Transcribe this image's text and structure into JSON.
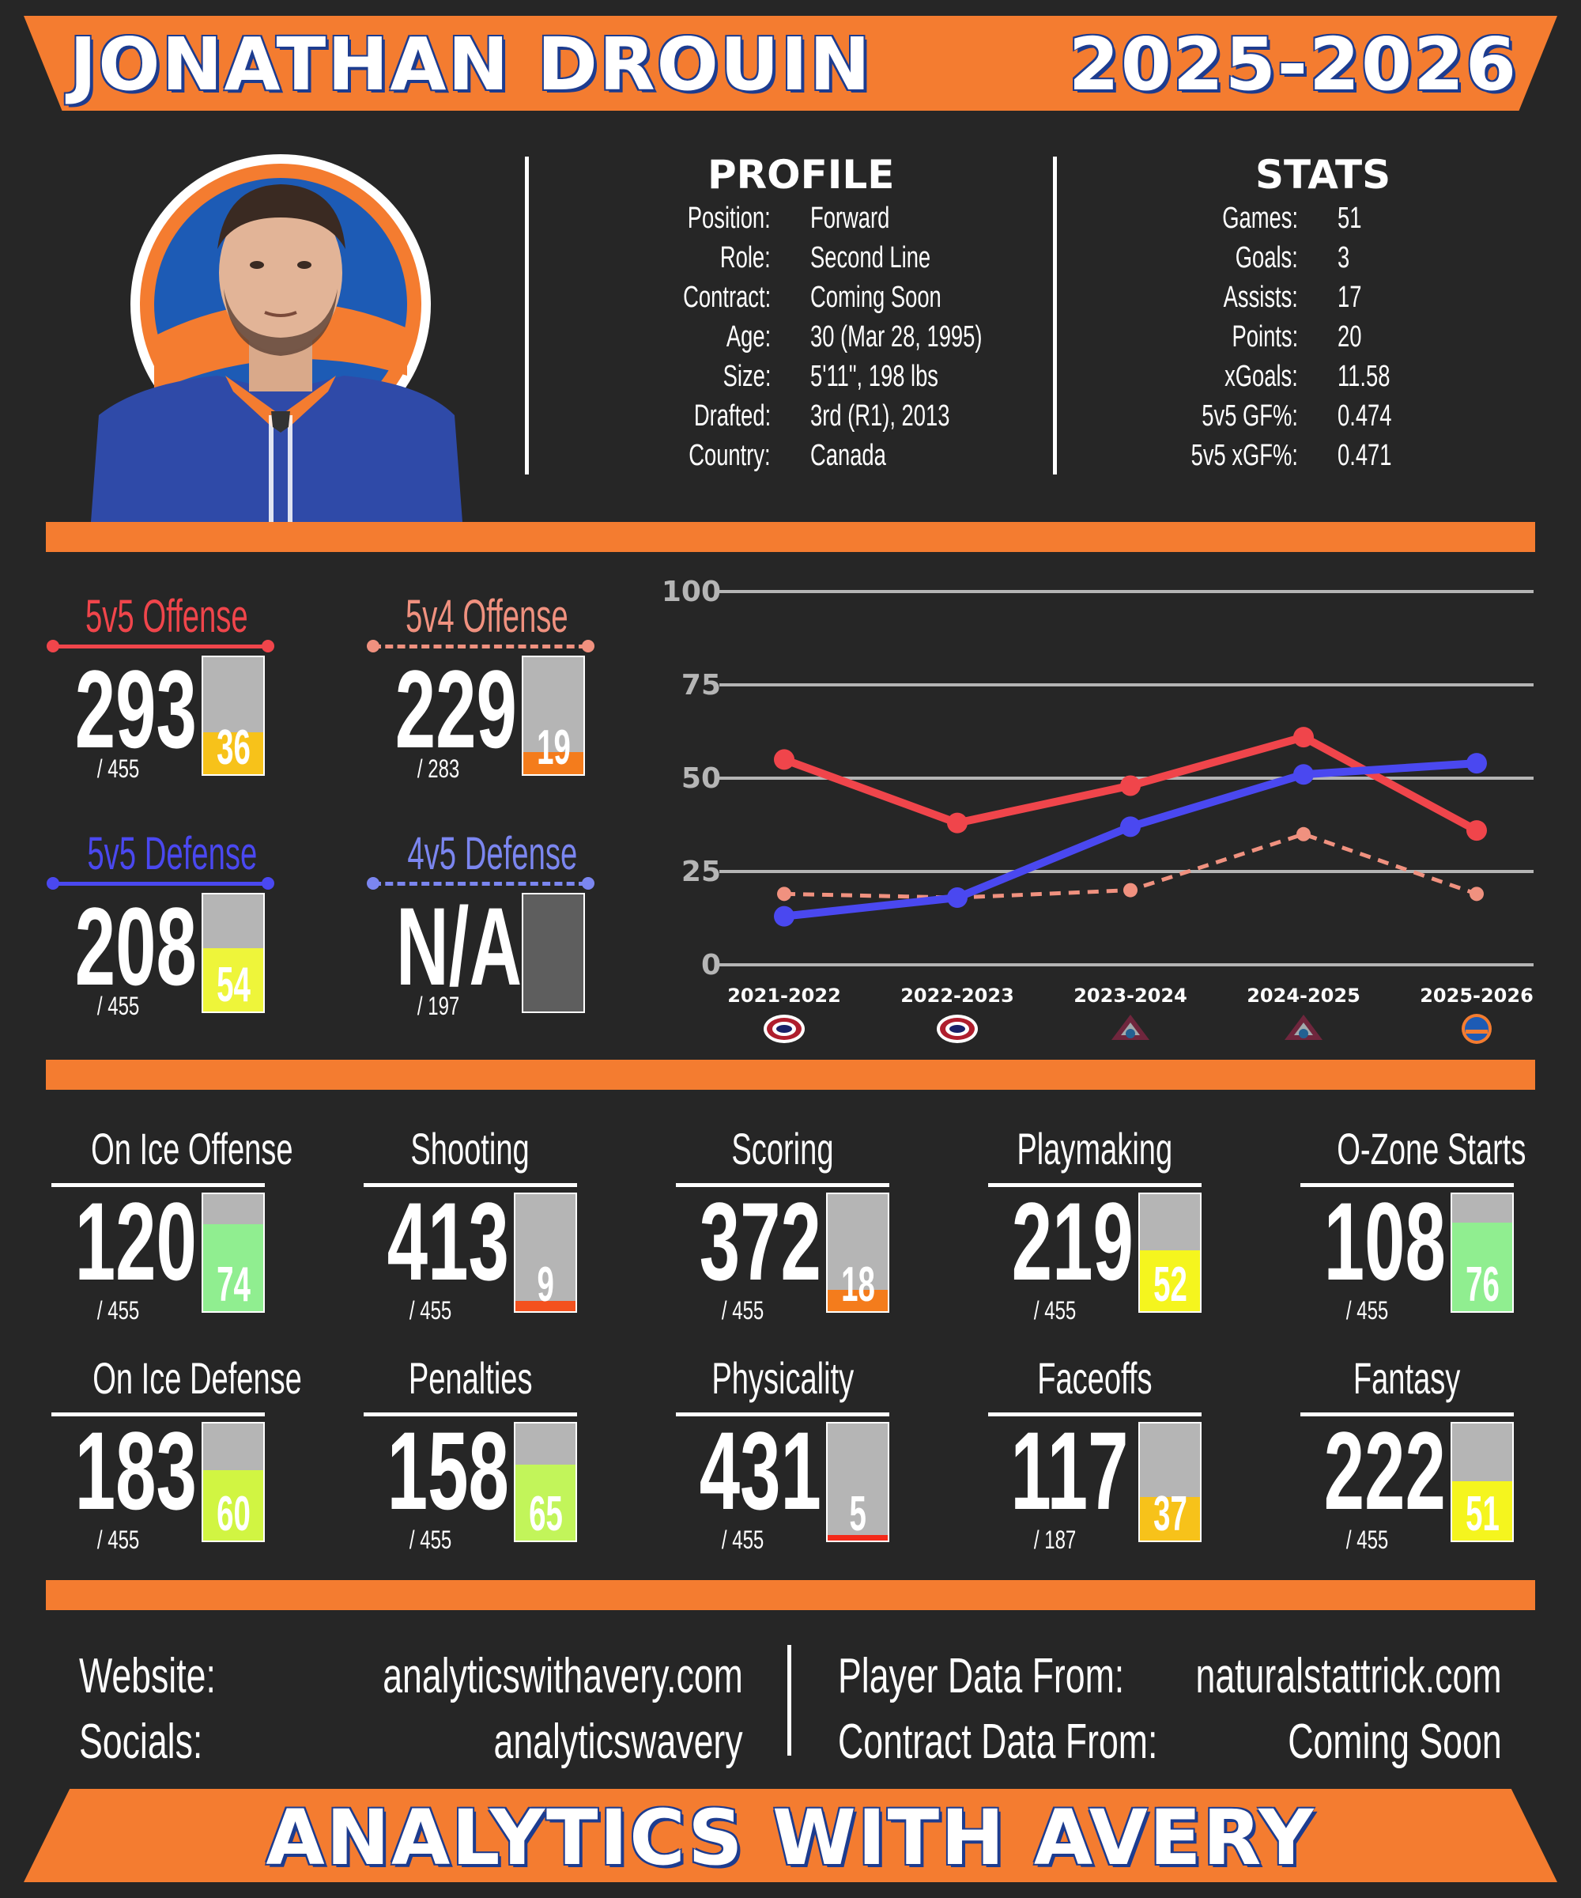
{
  "header": {
    "player_name": "JONATHAN DROUIN",
    "season": "2025-2026"
  },
  "profile": {
    "title": "PROFILE",
    "rows": [
      {
        "label": "Position:",
        "value": "Forward"
      },
      {
        "label": "Role:",
        "value": "Second Line"
      },
      {
        "label": "Contract:",
        "value": "Coming Soon"
      },
      {
        "label": "Age:",
        "value": "30 (Mar 28, 1995)"
      },
      {
        "label": "Size:",
        "value": "5'11\", 198 lbs"
      },
      {
        "label": "Drafted:",
        "value": "3rd (R1), 2013"
      },
      {
        "label": "Country:",
        "value": "Canada"
      }
    ]
  },
  "stats": {
    "title": "STATS",
    "rows": [
      {
        "label": "Games:",
        "value": "51"
      },
      {
        "label": "Goals:",
        "value": "3"
      },
      {
        "label": "Assists:",
        "value": "17"
      },
      {
        "label": "Points:",
        "value": "20"
      },
      {
        "label": "xGoals:",
        "value": "11.58"
      },
      {
        "label": "5v5 GF%:",
        "value": "0.474"
      },
      {
        "label": "5v5 xGF%:",
        "value": "0.471"
      }
    ]
  },
  "top_metrics": [
    {
      "title": "5v5 Offense",
      "rank": "293",
      "total": "/ 455",
      "percentile": 36,
      "pct_label": "36",
      "color": "#f0454b",
      "fill": "#f7c21a",
      "style": "solid"
    },
    {
      "title": "5v4 Offense",
      "rank": "229",
      "total": "/ 283",
      "percentile": 19,
      "pct_label": "19",
      "color": "#f0917f",
      "fill": "#f47c1c",
      "style": "dashed"
    },
    {
      "title": "5v5 Defense",
      "rank": "208",
      "total": "/ 455",
      "percentile": 54,
      "pct_label": "54",
      "color": "#4a48f0",
      "fill": "#eef53a",
      "style": "solid"
    },
    {
      "title": "4v5 Defense",
      "rank": "N/A",
      "total": "/ 197",
      "percentile": null,
      "pct_label": "",
      "color": "#7b86f0",
      "fill": "#5e5e5e",
      "style": "dashed"
    }
  ],
  "chart_data": {
    "type": "line",
    "categories": [
      "2021-2022",
      "2022-2023",
      "2023-2024",
      "2024-2025",
      "2025-2026"
    ],
    "team_icons": [
      "canadiens-logo-icon",
      "canadiens-logo-icon",
      "avalanche-logo-icon",
      "avalanche-logo-icon",
      "islanders-logo-icon"
    ],
    "ylim": [
      0,
      100
    ],
    "yticks": [
      "0",
      "25",
      "50",
      "75",
      "100"
    ],
    "grid": true,
    "series": [
      {
        "values": [
          55,
          38,
          48,
          61,
          36
        ],
        "color": "#f0454b",
        "style": "solid"
      },
      {
        "values": [
          19,
          18,
          20,
          35,
          19
        ],
        "color": "#f0917f",
        "style": "dashed"
      },
      {
        "values": [
          13,
          18,
          37,
          51,
          54
        ],
        "color": "#4a48f0",
        "style": "solid"
      }
    ]
  },
  "metrics": [
    {
      "title": "On Ice Offense",
      "rank": "120",
      "total": "/ 455",
      "percentile": 74,
      "pct_label": "74",
      "fill": "#90ee90"
    },
    {
      "title": "Shooting",
      "rank": "413",
      "total": "/ 455",
      "percentile": 9,
      "pct_label": "9",
      "fill": "#f4511e"
    },
    {
      "title": "Scoring",
      "rank": "372",
      "total": "/ 455",
      "percentile": 18,
      "pct_label": "18",
      "fill": "#f47c1c"
    },
    {
      "title": "Playmaking",
      "rank": "219",
      "total": "/ 455",
      "percentile": 52,
      "pct_label": "52",
      "fill": "#f5f51e"
    },
    {
      "title": "O-Zone Starts",
      "rank": "108",
      "total": "/ 455",
      "percentile": 76,
      "pct_label": "76",
      "fill": "#90ee90"
    },
    {
      "title": "On Ice Defense",
      "rank": "183",
      "total": "/ 455",
      "percentile": 60,
      "pct_label": "60",
      "fill": "#d1f542"
    },
    {
      "title": "Penalties",
      "rank": "158",
      "total": "/ 455",
      "percentile": 65,
      "pct_label": "65",
      "fill": "#c2f55a"
    },
    {
      "title": "Physicality",
      "rank": "431",
      "total": "/ 455",
      "percentile": 5,
      "pct_label": "5",
      "fill": "#f42a1a"
    },
    {
      "title": "Faceoffs",
      "rank": "117",
      "total": "/ 187",
      "percentile": 37,
      "pct_label": "37",
      "fill": "#f7c21a"
    },
    {
      "title": "Fantasy",
      "rank": "222",
      "total": "/ 455",
      "percentile": 51,
      "pct_label": "51",
      "fill": "#f5f51e"
    }
  ],
  "footer": {
    "website_label": "Website:",
    "website_value": "analyticswithavery.com",
    "socials_label": "Socials:",
    "socials_value": "analyticswavery",
    "player_data_label": "Player Data From:",
    "player_data_value": "naturalstattrick.com",
    "contract_data_label": "Contract Data From:",
    "contract_data_value": "Coming Soon",
    "brand": "ANALYTICS WITH AVERY"
  },
  "colors": {
    "background": "#262626",
    "accent_orange": "#f47c30",
    "islanders_blue": "#1d3c8f"
  }
}
